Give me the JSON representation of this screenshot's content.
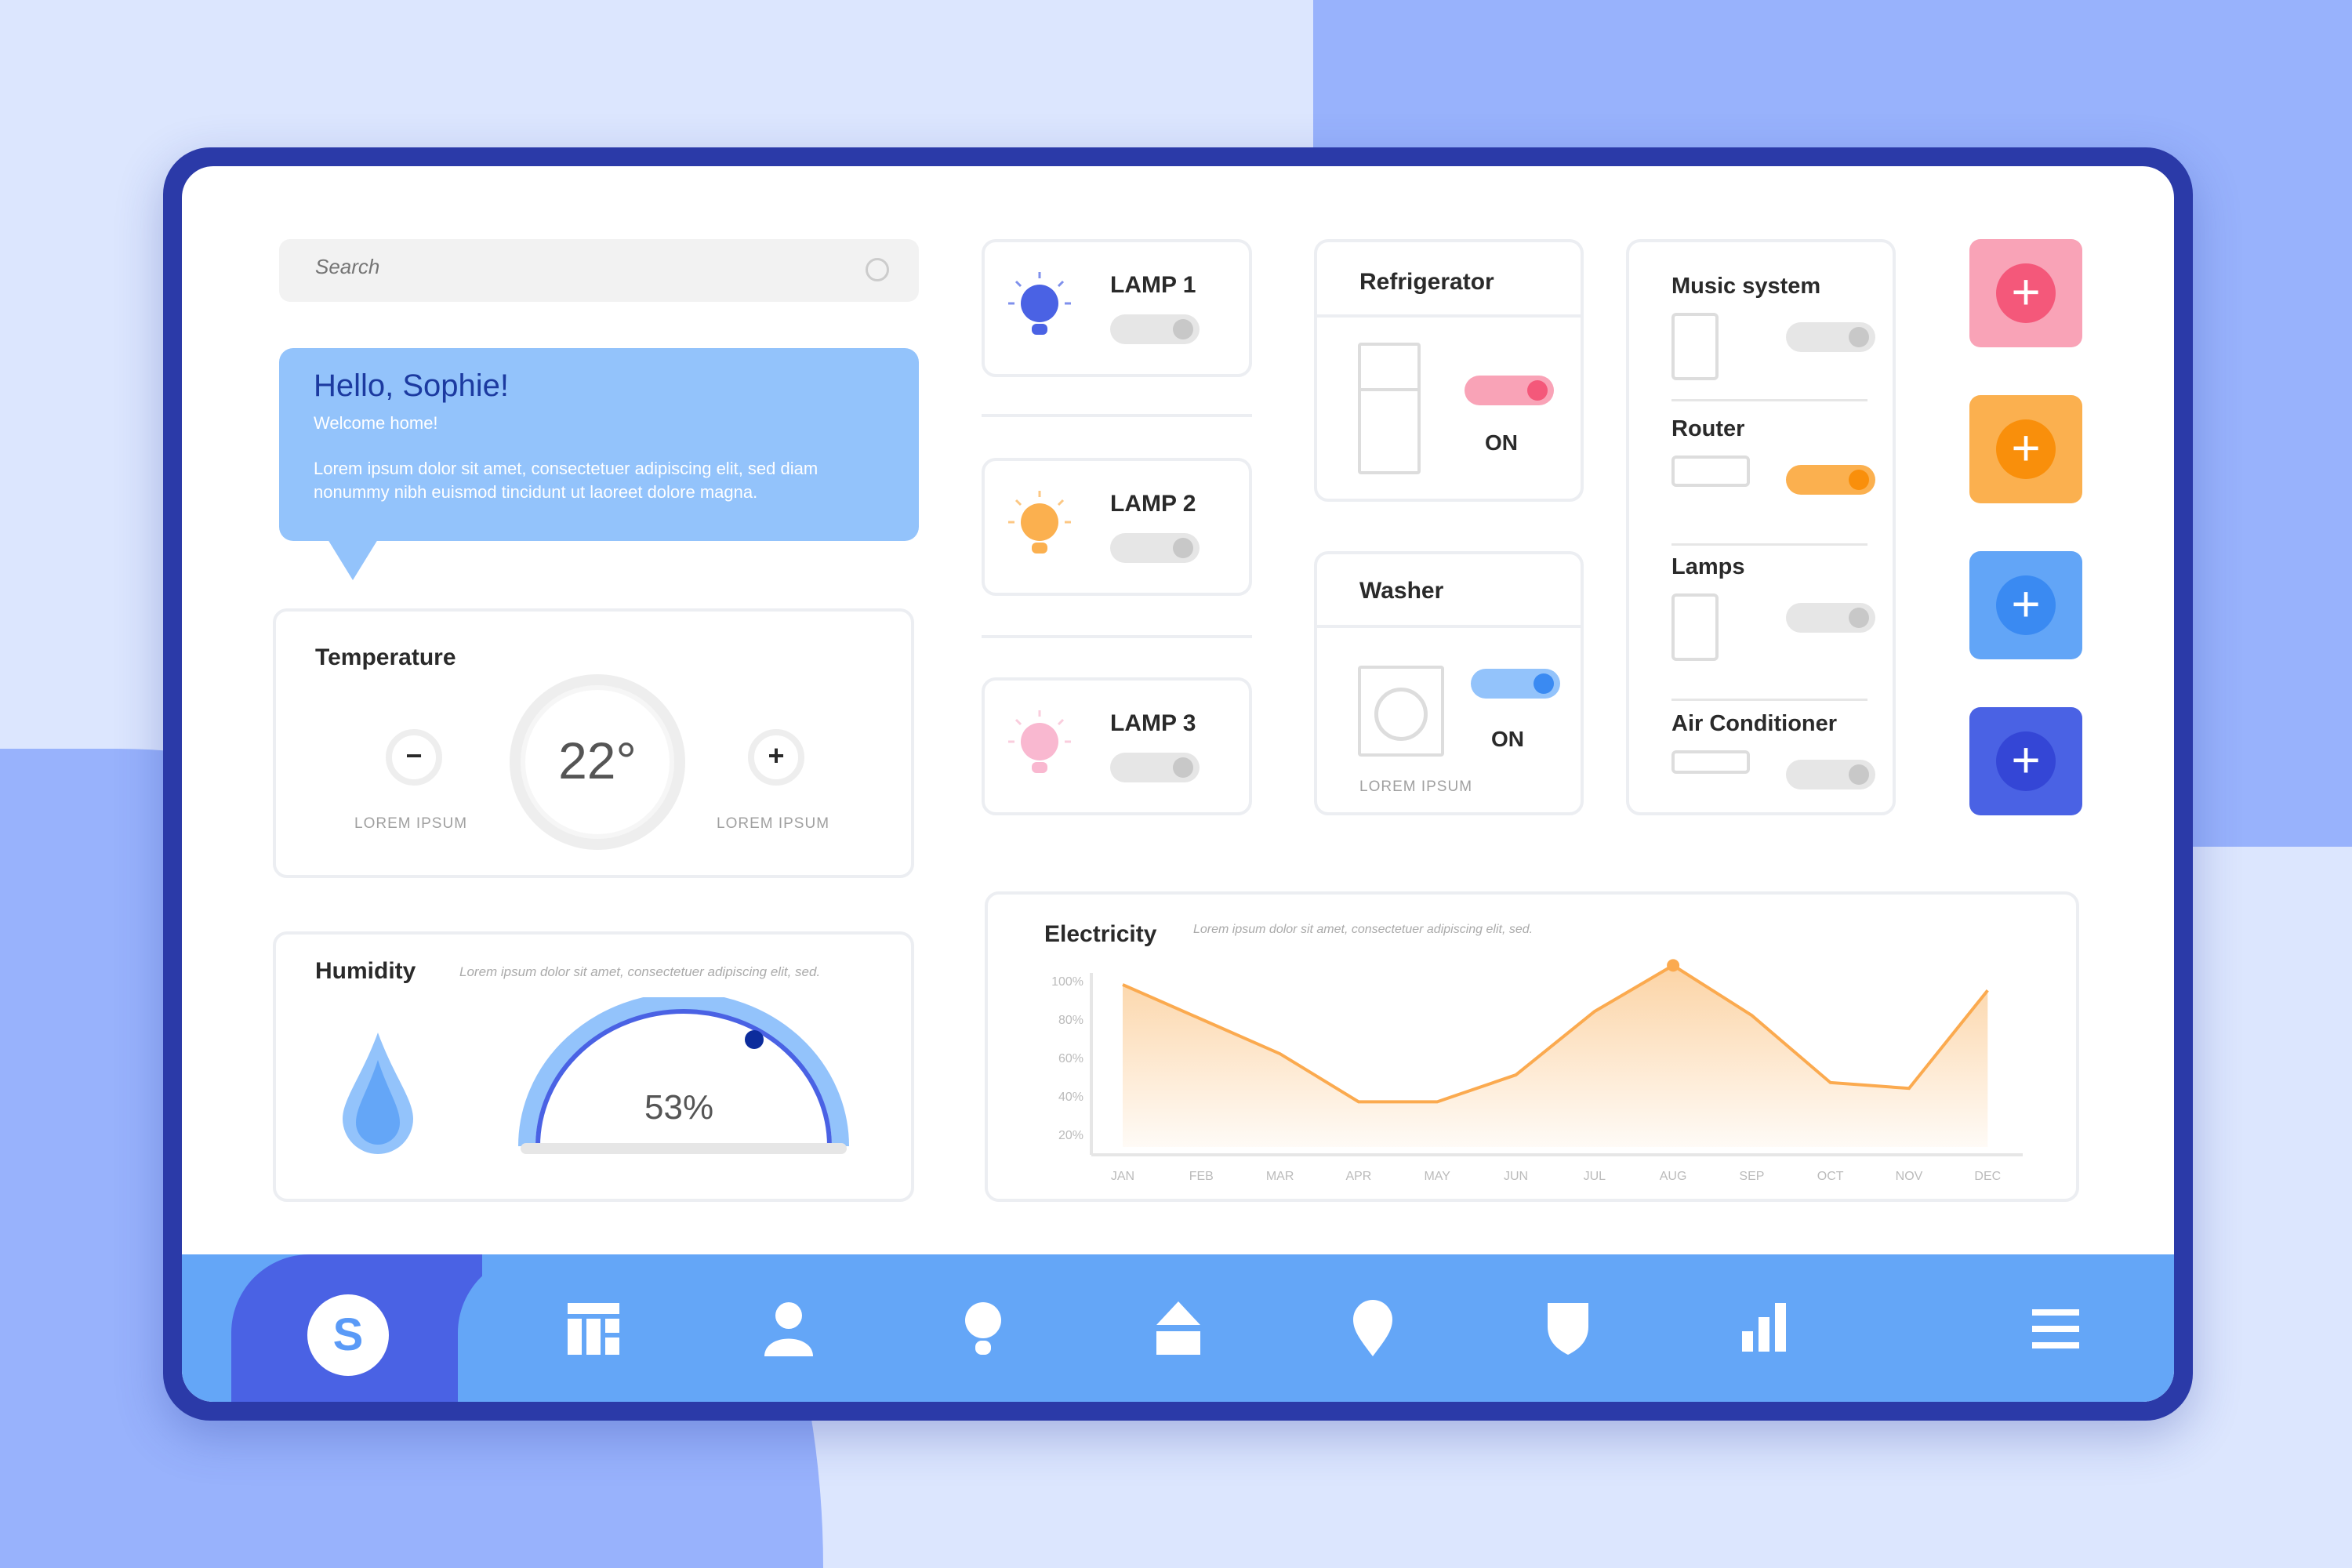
{
  "search": {
    "placeholder": "Search"
  },
  "greeting": {
    "title": "Hello, Sophie!",
    "subtitle": "Welcome home!",
    "body": "Lorem ipsum dolor sit amet, consectetuer adipiscing elit, sed diam nonummy nibh euismod tincidunt ut laoreet dolore magna."
  },
  "temperature": {
    "title": "Temperature",
    "value": "22°",
    "minus_label": "LOREM IPSUM",
    "plus_label": "LOREM IPSUM"
  },
  "humidity": {
    "title": "Humidity",
    "description": "Lorem ipsum dolor sit amet, consectetuer adipiscing elit, sed.",
    "value": "53%",
    "level": 53
  },
  "lamps": [
    {
      "label": "LAMP 1",
      "on": false,
      "color": "#4a62e4"
    },
    {
      "label": "LAMP 2",
      "on": false,
      "color": "#fbb04f"
    },
    {
      "label": "LAMP 3",
      "on": false,
      "color": "#f9b8d0"
    }
  ],
  "refrigerator": {
    "title": "Refrigerator",
    "state": "ON"
  },
  "washer": {
    "title": "Washer",
    "state": "ON",
    "caption": "LOREM IPSUM"
  },
  "devices": [
    {
      "label": "Music system",
      "on": false
    },
    {
      "label": "Router",
      "on": true
    },
    {
      "label": "Lamps",
      "on": false
    },
    {
      "label": "Air Conditioner",
      "on": false
    }
  ],
  "add_buttons": [
    {
      "color": "#f9a3b7",
      "accent": "#f4587a"
    },
    {
      "color": "#fbb04f",
      "accent": "#f98f0b"
    },
    {
      "color": "#62a5f7",
      "accent": "#3a8af2"
    },
    {
      "color": "#4a62e4",
      "accent": "#3446d6"
    }
  ],
  "electricity": {
    "title": "Electricity",
    "description": "Lorem ipsum dolor sit amet, consectetuer adipiscing elit, sed."
  },
  "chart_data": {
    "type": "area",
    "categories": [
      "JAN",
      "FEB",
      "MAR",
      "APR",
      "MAY",
      "JUN",
      "JUL",
      "AUG",
      "SEP",
      "OCT",
      "NOV",
      "DEC"
    ],
    "values": [
      98,
      80,
      62,
      37,
      37,
      51,
      84,
      108,
      82,
      47,
      44,
      95
    ],
    "yticks": [
      "100%",
      "80%",
      "60%",
      "40%",
      "20%"
    ],
    "ylim": [
      8,
      110
    ],
    "highlight": "AUG",
    "grid": false,
    "color": "#fbaa4f"
  },
  "nav": {
    "avatar_letter": "S",
    "items": [
      "dashboard",
      "user",
      "bulb",
      "home",
      "location",
      "shield",
      "stats",
      "menu"
    ]
  }
}
